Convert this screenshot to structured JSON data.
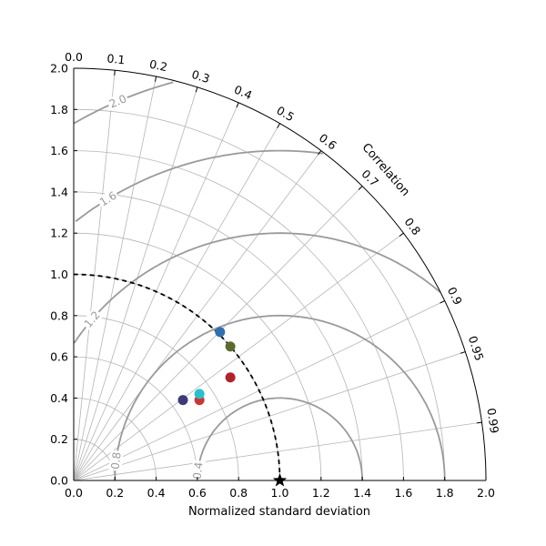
{
  "chart_data": {
    "type": "scatter",
    "subtype": "taylor-diagram",
    "xlabel": "Normalized standard deviation",
    "ylabel": "",
    "correlation_label": "Correlation",
    "xlim": [
      0,
      2
    ],
    "ylim": [
      0,
      2
    ],
    "std_ticks": [
      "0.0",
      "0.2",
      "0.4",
      "0.6",
      "0.8",
      "1.0",
      "1.2",
      "1.4",
      "1.6",
      "1.8",
      "2.0"
    ],
    "correlation_ticks": [
      {
        "value": 0.0,
        "label": "0.0"
      },
      {
        "value": 0.1,
        "label": "0.1"
      },
      {
        "value": 0.2,
        "label": "0.2"
      },
      {
        "value": 0.3,
        "label": "0.3"
      },
      {
        "value": 0.4,
        "label": "0.4"
      },
      {
        "value": 0.5,
        "label": "0.5"
      },
      {
        "value": 0.6,
        "label": "0.6"
      },
      {
        "value": 0.7,
        "label": "0.7"
      },
      {
        "value": 0.8,
        "label": "0.8"
      },
      {
        "value": 0.9,
        "label": "0.9"
      },
      {
        "value": 0.95,
        "label": "0.95"
      },
      {
        "value": 0.99,
        "label": "0.99"
      }
    ],
    "rms_contours": [
      {
        "value": 0.4,
        "label": "0.4"
      },
      {
        "value": 0.8,
        "label": "0.8"
      },
      {
        "value": 1.2,
        "label": "1.2"
      },
      {
        "value": 1.6,
        "label": "1.6"
      },
      {
        "value": 2.0,
        "label": "2.0"
      }
    ],
    "reference": {
      "std": 1.0,
      "marker": "star",
      "color": "#000000"
    },
    "grid": true,
    "points": [
      {
        "x": 0.53,
        "y": 0.39,
        "color": "#3b3b7a"
      },
      {
        "x": 0.61,
        "y": 0.39,
        "color": "#d1332e"
      },
      {
        "x": 0.61,
        "y": 0.42,
        "color": "#27c1d0"
      },
      {
        "x": 0.71,
        "y": 0.72,
        "color": "#2f6fb1"
      },
      {
        "x": 0.76,
        "y": 0.65,
        "color": "#5a6b2d"
      },
      {
        "x": 0.76,
        "y": 0.5,
        "color": "#b32227"
      }
    ]
  }
}
